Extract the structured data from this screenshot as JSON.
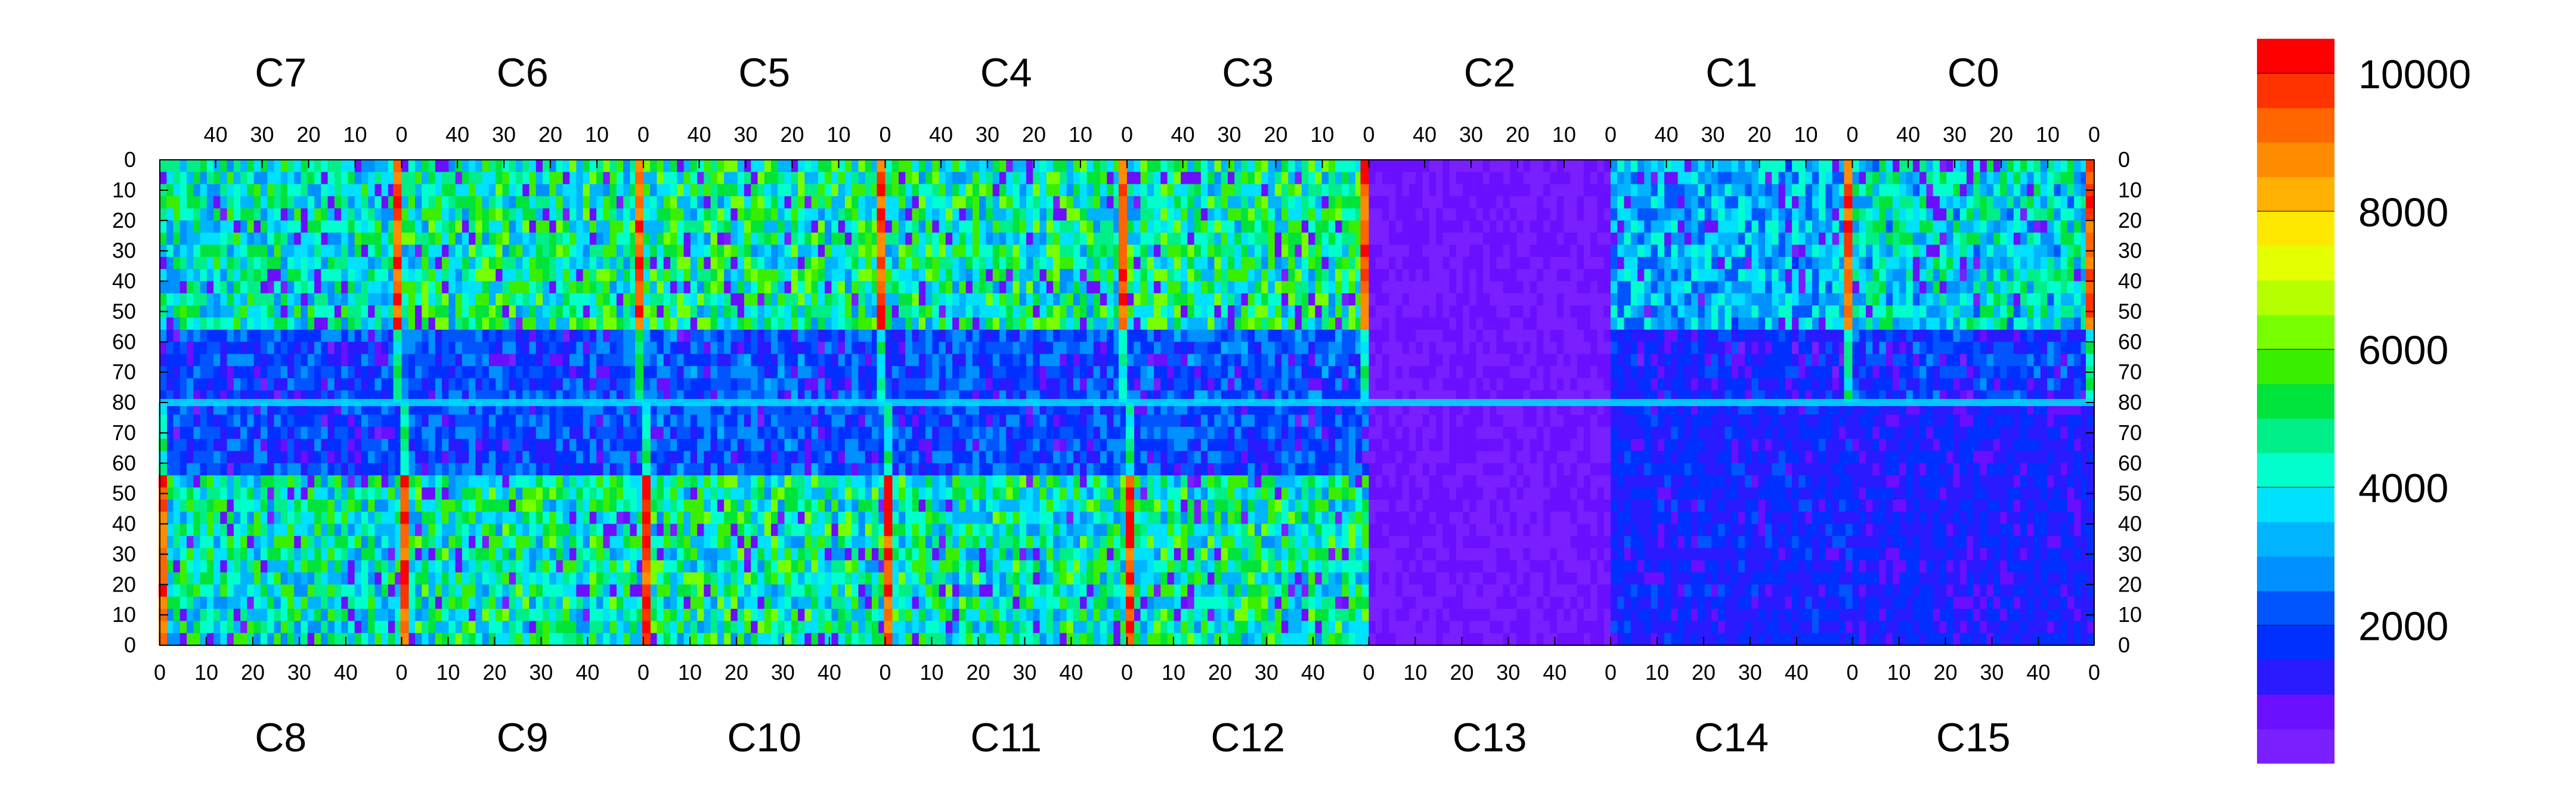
{
  "chart_data": {
    "type": "heatmap",
    "title": "",
    "xlabel": "",
    "ylabel": "",
    "top_chip_labels": [
      "C7",
      "C6",
      "C5",
      "C4",
      "C3",
      "C2",
      "C1",
      "C0"
    ],
    "bottom_chip_labels": [
      "C8",
      "C9",
      "C10",
      "C11",
      "C12",
      "C13",
      "C14",
      "C15"
    ],
    "top_axis_ticks": [
      "40",
      "30",
      "20",
      "10",
      "0"
    ],
    "bottom_axis_ticks": [
      "0",
      "10",
      "20",
      "30",
      "40"
    ],
    "top_axis_end_tick": "0",
    "bottom_axis_end_tick": "0",
    "y_ticks": [
      "0",
      "10",
      "20",
      "30",
      "40",
      "50",
      "60",
      "70",
      "80",
      "70",
      "60",
      "50",
      "40",
      "30",
      "20",
      "10",
      "0"
    ],
    "colorbar": {
      "ticks": [
        "2000",
        "4000",
        "6000",
        "8000",
        "10000"
      ],
      "colors": [
        "#7a1fff",
        "#6a0fff",
        "#2a1aff",
        "#0030ff",
        "#0055ff",
        "#0090ff",
        "#00b4ff",
        "#00e0ff",
        "#00ffcc",
        "#00ee88",
        "#00e33a",
        "#3aee00",
        "#77ff00",
        "#b6ff00",
        "#e4ff00",
        "#ffe800",
        "#ffb000",
        "#ff8c00",
        "#ff6600",
        "#ff3300",
        "#ff0000"
      ],
      "zmin": 0,
      "zmax": 10500
    },
    "chips": [
      {
        "name": "C0",
        "mean": 4400
      },
      {
        "name": "C1",
        "mean": 3600
      },
      {
        "name": "C2",
        "mean": 500
      },
      {
        "name": "C3",
        "mean": 5200
      },
      {
        "name": "C4",
        "mean": 5000
      },
      {
        "name": "C5",
        "mean": 5200
      },
      {
        "name": "C6",
        "mean": 5000
      },
      {
        "name": "C7",
        "mean": 4600
      },
      {
        "name": "C8",
        "mean": 4700
      },
      {
        "name": "C9",
        "mean": 5000
      },
      {
        "name": "C10",
        "mean": 5100
      },
      {
        "name": "C11",
        "mean": 4900
      },
      {
        "name": "C12",
        "mean": 5000
      },
      {
        "name": "C13",
        "mean": 500
      },
      {
        "name": "C14",
        "mean": 1500
      },
      {
        "name": "C15",
        "mean": 1400
      }
    ]
  }
}
